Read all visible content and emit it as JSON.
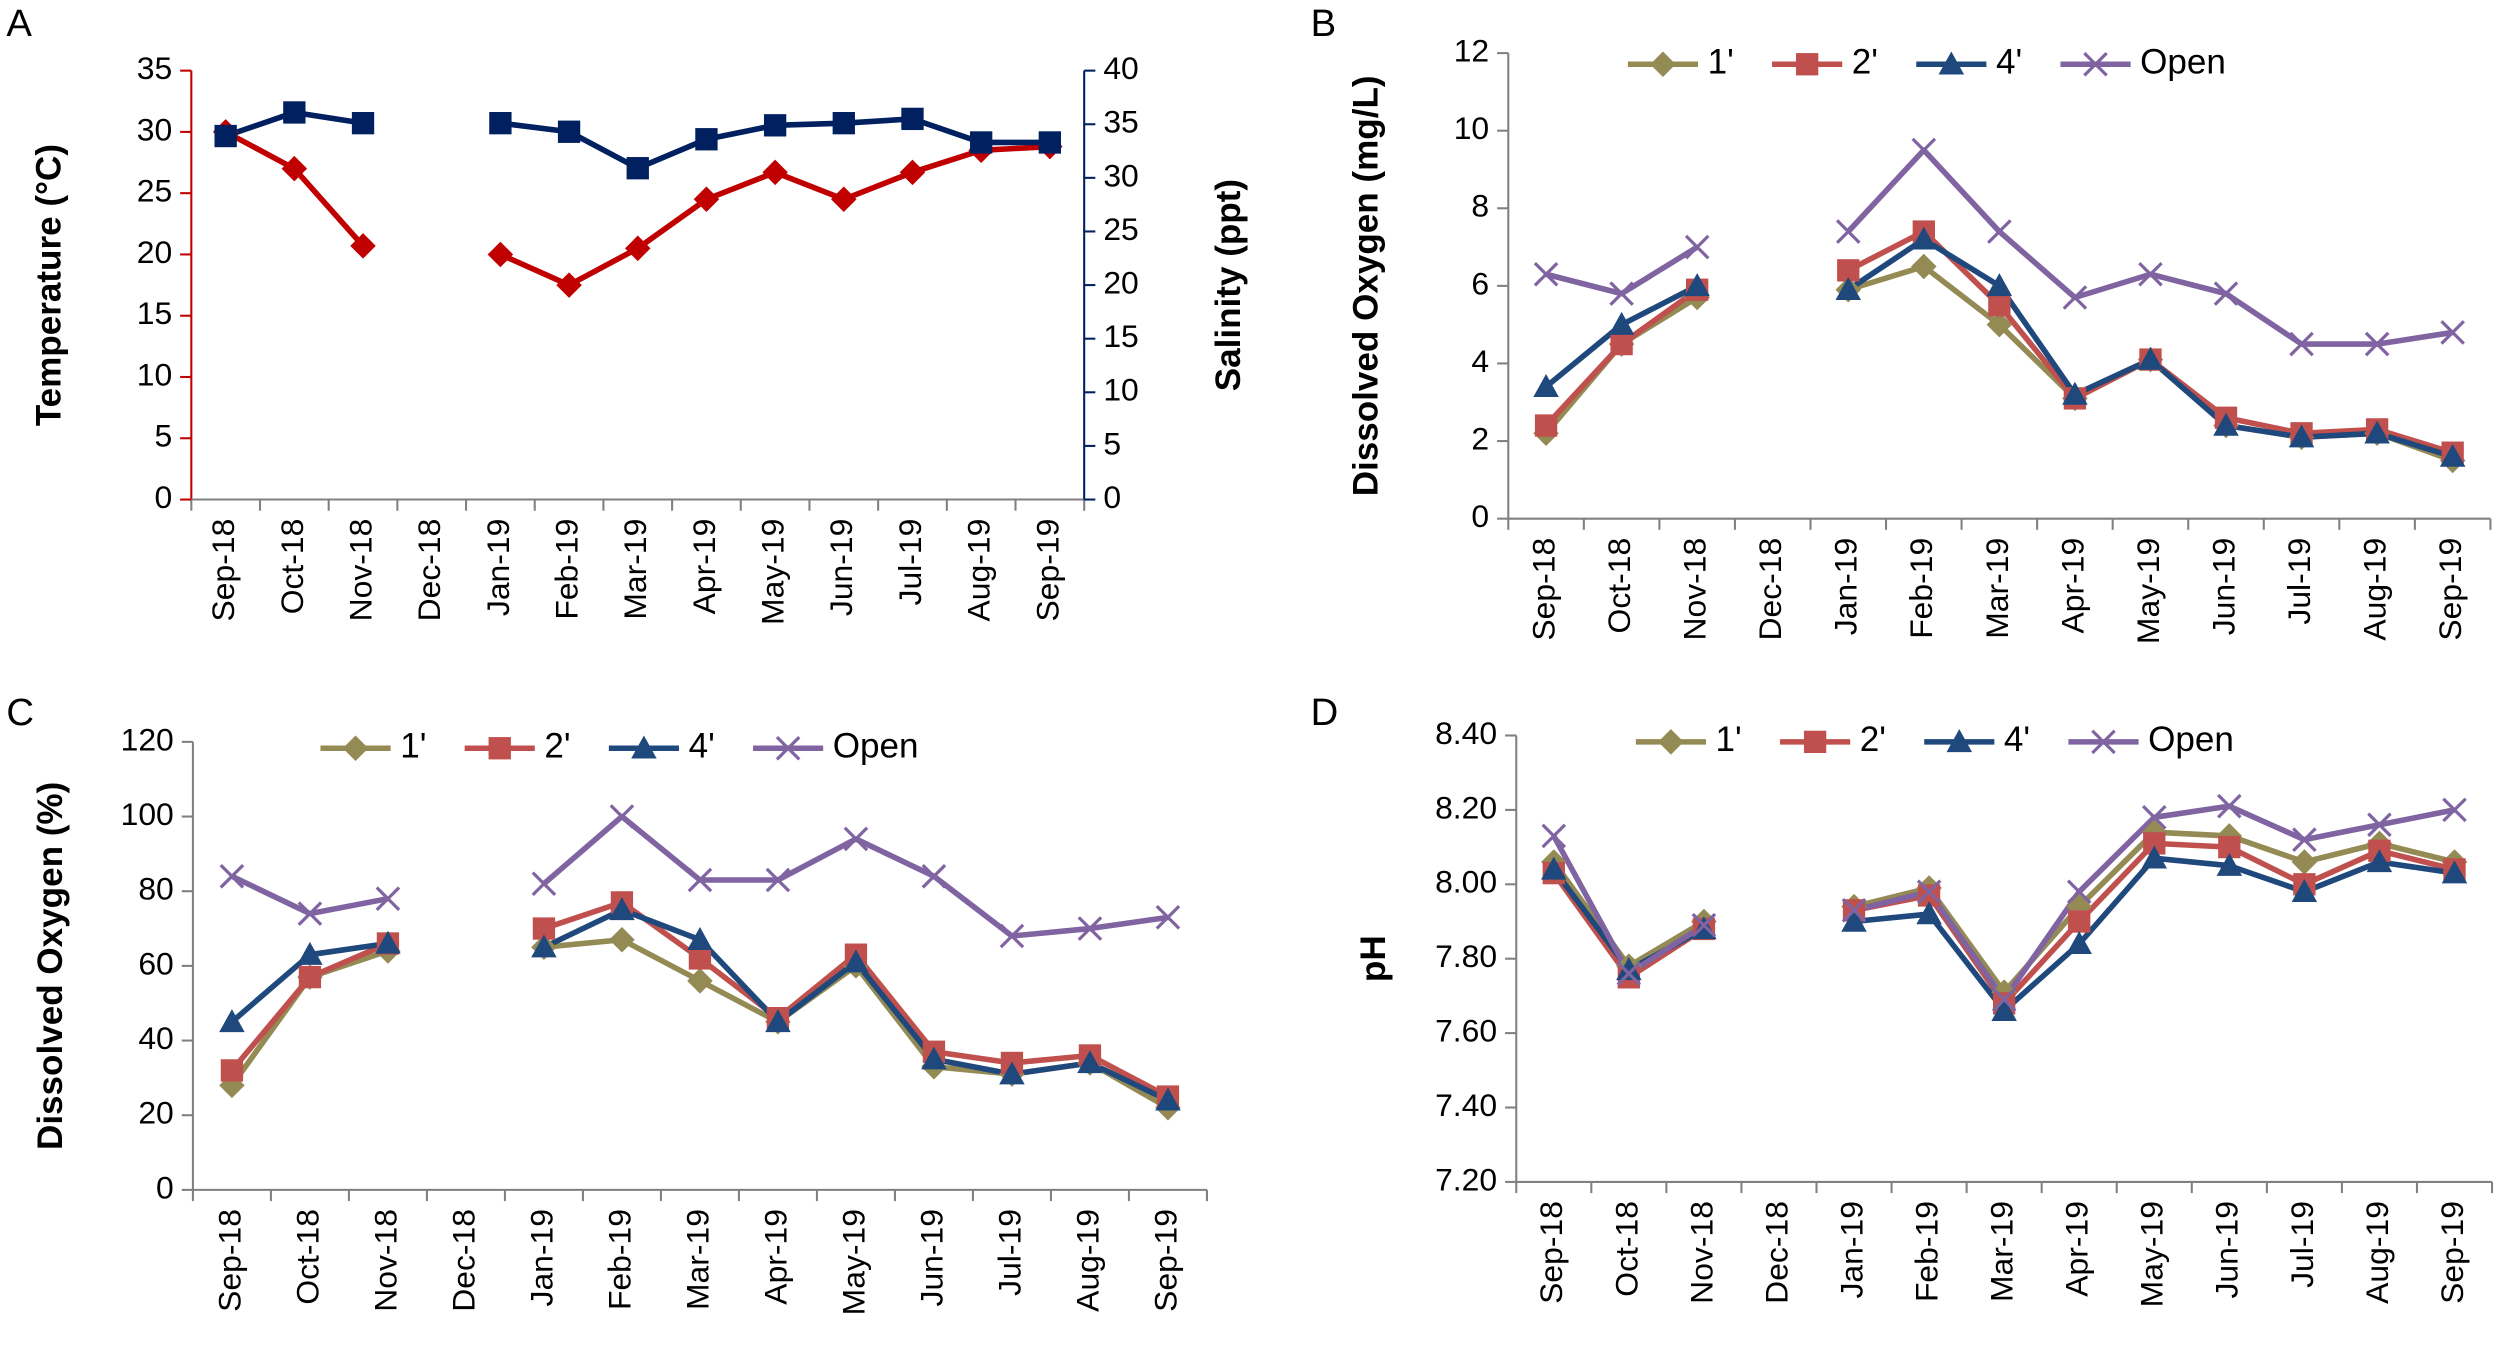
{
  "chart_data": [
    {
      "type": "line",
      "title": "A",
      "categories": [
        "Sep-18",
        "Oct-18",
        "Nov-18",
        "Dec-18",
        "Jan-19",
        "Feb-19",
        "Mar-19",
        "Apr-19",
        "May-19",
        "Jun-19",
        "Jul-19",
        "Aug-19",
        "Sep-19"
      ],
      "ylabel": "Temperature (°C)",
      "y2label": "Salinity (ppt)",
      "ylim": [
        0,
        35
      ],
      "yticks": [
        0,
        5,
        10,
        15,
        20,
        25,
        30,
        35
      ],
      "y2lim": [
        0,
        40
      ],
      "y2ticks": [
        0,
        5,
        10,
        15,
        20,
        25,
        30,
        35,
        40
      ],
      "series": [
        {
          "color": "#c00000",
          "marker": "diamond",
          "values": [
            30,
            27,
            20.7,
            null,
            20,
            17.5,
            20.5,
            24.5,
            26.7,
            24.5,
            26.7,
            28.5,
            28.8
          ]
        },
        {
          "color": "#002060",
          "marker": "square",
          "axis": "y2",
          "values": [
            33.9,
            36.1,
            35.1,
            null,
            35.1,
            34.3,
            30.9,
            33.6,
            34.9,
            35.1,
            35.5,
            33.3,
            33.3
          ]
        }
      ]
    },
    {
      "type": "line",
      "title": "B",
      "categories": [
        "Sep-18",
        "Oct-18",
        "Nov-18",
        "Dec-18",
        "Jan-19",
        "Feb-19",
        "Mar-19",
        "Apr-19",
        "May-19",
        "Jun-19",
        "Jul-19",
        "Aug-19",
        "Sep-19"
      ],
      "ylabel": "Dissolved Oxygen (mg/L)",
      "ylim": [
        0,
        12
      ],
      "yticks": [
        0,
        2,
        4,
        6,
        8,
        10,
        12
      ],
      "legend": "top",
      "series": [
        {
          "name": "1'",
          "color": "#948a54",
          "marker": "diamond",
          "values": [
            2.2,
            4.5,
            5.7,
            null,
            5.9,
            6.5,
            5.0,
            3.1,
            4.1,
            2.4,
            2.1,
            2.2,
            1.5
          ]
        },
        {
          "name": "2'",
          "color": "#c0504d",
          "marker": "square",
          "values": [
            2.4,
            4.5,
            5.9,
            null,
            6.4,
            7.4,
            5.5,
            3.1,
            4.1,
            2.6,
            2.2,
            2.3,
            1.7
          ]
        },
        {
          "name": "4'",
          "color": "#1f497d",
          "marker": "triangle",
          "values": [
            3.4,
            5.0,
            6.0,
            null,
            5.9,
            7.2,
            6.0,
            3.2,
            4.1,
            2.4,
            2.1,
            2.2,
            1.6
          ]
        },
        {
          "name": "Open",
          "color": "#8064a2",
          "marker": "x",
          "values": [
            6.3,
            5.8,
            7.0,
            null,
            7.4,
            9.5,
            7.4,
            5.7,
            6.3,
            5.8,
            4.5,
            4.5,
            4.8
          ]
        }
      ]
    },
    {
      "type": "line",
      "title": "C",
      "categories": [
        "Sep-18",
        "Oct-18",
        "Nov-18",
        "Dec-18",
        "Jan-19",
        "Feb-19",
        "Mar-19",
        "Apr-19",
        "May-19",
        "Jun-19",
        "Jul-19",
        "Aug-19",
        "Sep-19"
      ],
      "ylabel": "Dissolved Oxygen (%)",
      "ylim": [
        0,
        120
      ],
      "yticks": [
        0,
        20,
        40,
        60,
        80,
        100,
        120
      ],
      "legend": "top",
      "series": [
        {
          "name": "1'",
          "color": "#948a54",
          "marker": "diamond",
          "values": [
            28,
            57,
            64,
            null,
            65,
            67,
            56,
            45,
            60,
            33,
            31,
            34,
            22
          ]
        },
        {
          "name": "2'",
          "color": "#c0504d",
          "marker": "square",
          "values": [
            32,
            57,
            66,
            null,
            70,
            77,
            62,
            46,
            63,
            37,
            34,
            36,
            25
          ]
        },
        {
          "name": "4'",
          "color": "#1f497d",
          "marker": "triangle",
          "values": [
            45,
            63,
            66,
            null,
            65,
            75,
            67,
            45,
            61,
            35,
            31,
            34,
            24
          ]
        },
        {
          "name": "Open",
          "color": "#8064a2",
          "marker": "x",
          "values": [
            84,
            74,
            78,
            null,
            82,
            100,
            83,
            83,
            94,
            84,
            68,
            70,
            73
          ]
        }
      ]
    },
    {
      "type": "line",
      "title": "D",
      "categories": [
        "Sep-18",
        "Oct-18",
        "Nov-18",
        "Dec-18",
        "Jan-19",
        "Feb-19",
        "Mar-19",
        "Apr-19",
        "May-19",
        "Jun-19",
        "Jul-19",
        "Aug-19",
        "Sep-19"
      ],
      "ylabel": "pH",
      "ylim": [
        7.2,
        8.4
      ],
      "yticks": [
        {
          "value": 7.2,
          "label": "7.20"
        },
        {
          "value": 7.4,
          "label": "7.40"
        },
        {
          "value": 7.6,
          "label": "7.60"
        },
        {
          "value": 7.8,
          "label": "7.80"
        },
        {
          "value": 8.0,
          "label": "8.00"
        },
        {
          "value": 8.2,
          "label": "8.20"
        },
        {
          "value": 8.4,
          "label": "8.40"
        }
      ],
      "legend": "top",
      "series": [
        {
          "name": "1'",
          "color": "#948a54",
          "marker": "diamond",
          "values": [
            8.06,
            7.78,
            7.9,
            null,
            7.94,
            7.99,
            7.71,
            7.94,
            8.14,
            8.13,
            8.06,
            8.11,
            8.06
          ]
        },
        {
          "name": "2'",
          "color": "#c0504d",
          "marker": "square",
          "values": [
            8.03,
            7.75,
            7.88,
            null,
            7.93,
            7.97,
            7.68,
            7.9,
            8.11,
            8.1,
            8.0,
            8.09,
            8.04
          ]
        },
        {
          "name": "4'",
          "color": "#1f497d",
          "marker": "triangle",
          "values": [
            8.04,
            7.77,
            7.88,
            null,
            7.9,
            7.92,
            7.66,
            7.84,
            8.07,
            8.05,
            7.98,
            8.06,
            8.03
          ]
        },
        {
          "name": "Open",
          "color": "#8064a2",
          "marker": "x",
          "values": [
            8.13,
            7.76,
            7.89,
            null,
            7.93,
            7.98,
            7.69,
            7.98,
            8.18,
            8.21,
            8.12,
            8.16,
            8.2
          ]
        }
      ]
    }
  ]
}
